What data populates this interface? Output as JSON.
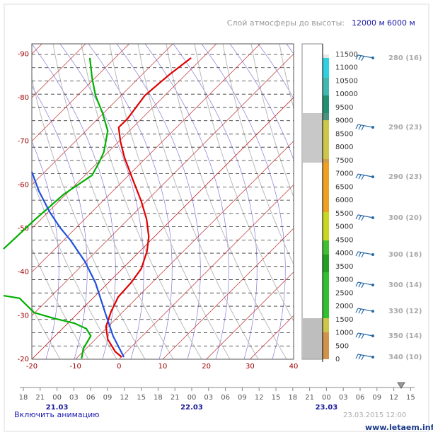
{
  "header": {
    "label": "Слой атмосферы до высоты:",
    "options": [
      "12000 м",
      "6000 м"
    ]
  },
  "chart_data": {
    "type": "skew-t",
    "xlim": [
      -20,
      40
    ],
    "xticks": [
      -20,
      -10,
      0,
      10,
      20,
      30,
      40
    ],
    "ylim": [
      0,
      11900
    ],
    "yticks": [
      0,
      500,
      1000,
      1500,
      2000,
      2500,
      3000,
      3500,
      4000,
      4500,
      5000,
      5500,
      6000,
      6500,
      7000,
      7500,
      8000,
      8500,
      9000,
      9500,
      10000,
      10500,
      11000,
      11500
    ],
    "left_ticks": [
      -90,
      -80,
      -70,
      -60,
      -50,
      -40,
      -30,
      -20
    ],
    "grid": true,
    "series": [
      {
        "name": "temperature",
        "color": "#e00000",
        "x": [
          0.6,
          -0.9,
          -2.6,
          -3.0,
          -1.8,
          -0.2,
          2.7,
          5.1,
          6.4,
          6.8,
          6.3,
          5.1,
          3.2,
          1.2,
          0.3,
          -0.1,
          1.9,
          5.9,
          11.6,
          16.5
        ],
        "values": [
          80,
          290,
          750,
          1230,
          1810,
          2350,
          2880,
          3420,
          4080,
          4620,
          5280,
          5950,
          6750,
          7630,
          8220,
          8750,
          9070,
          9950,
          10750,
          11370
        ]
      },
      {
        "name": "dewpoint",
        "color": "#00b000",
        "x": [
          -8.6,
          -8.2,
          -6.5,
          -7.5,
          -10.3,
          -15.1,
          -19.5,
          -22.8,
          -26.5,
          null,
          -26.5,
          -19.2,
          -12.7,
          -6.2,
          -4.6,
          -3.5,
          -2.6,
          -3.8,
          -5.4,
          -6.2,
          -6.7
        ],
        "values": [
          30,
          400,
          880,
          1150,
          1360,
          1550,
          1760,
          2300,
          2400,
          null,
          4160,
          5280,
          6220,
          6940,
          7420,
          7820,
          8620,
          9290,
          9950,
          10620,
          11370
        ]
      },
      {
        "name": "state-curve",
        "color": "#2050e0",
        "x": [
          1.1,
          -1.4,
          -3.3,
          -5.4,
          -7.8,
          -11.1,
          -13.5,
          -15.9,
          -18.4,
          -20
        ],
        "values": [
          80,
          880,
          1810,
          2880,
          3680,
          4480,
          4960,
          5550,
          6350,
          7070
        ]
      }
    ]
  },
  "wind": [
    {
      "height": 11370,
      "label": "280 (16)"
    },
    {
      "height": 8750,
      "label": "290 (23)"
    },
    {
      "height": 6880,
      "label": "290 (23)"
    },
    {
      "height": 5340,
      "label": "300 (20)"
    },
    {
      "height": 3950,
      "label": "300 (16)"
    },
    {
      "height": 2800,
      "label": "300 (14)"
    },
    {
      "height": 1810,
      "label": "330 (12)"
    },
    {
      "height": 880,
      "label": "350 (14)"
    },
    {
      "height": 80,
      "label": "340 (10)"
    }
  ],
  "timeline": {
    "hours": [
      "18",
      "21",
      "00",
      "03",
      "06",
      "09",
      "12",
      "15",
      "18",
      "21",
      "00",
      "03",
      "06",
      "09",
      "12",
      "15",
      "18",
      "21",
      "00",
      "03",
      "06",
      "09",
      "12",
      "15"
    ],
    "dates": [
      "21.03",
      "22.03",
      "23.03"
    ]
  },
  "footer": {
    "animation": "Включить анимацию",
    "timestamp": "23.03.2015 12:00",
    "site": "www.letaem.info"
  }
}
